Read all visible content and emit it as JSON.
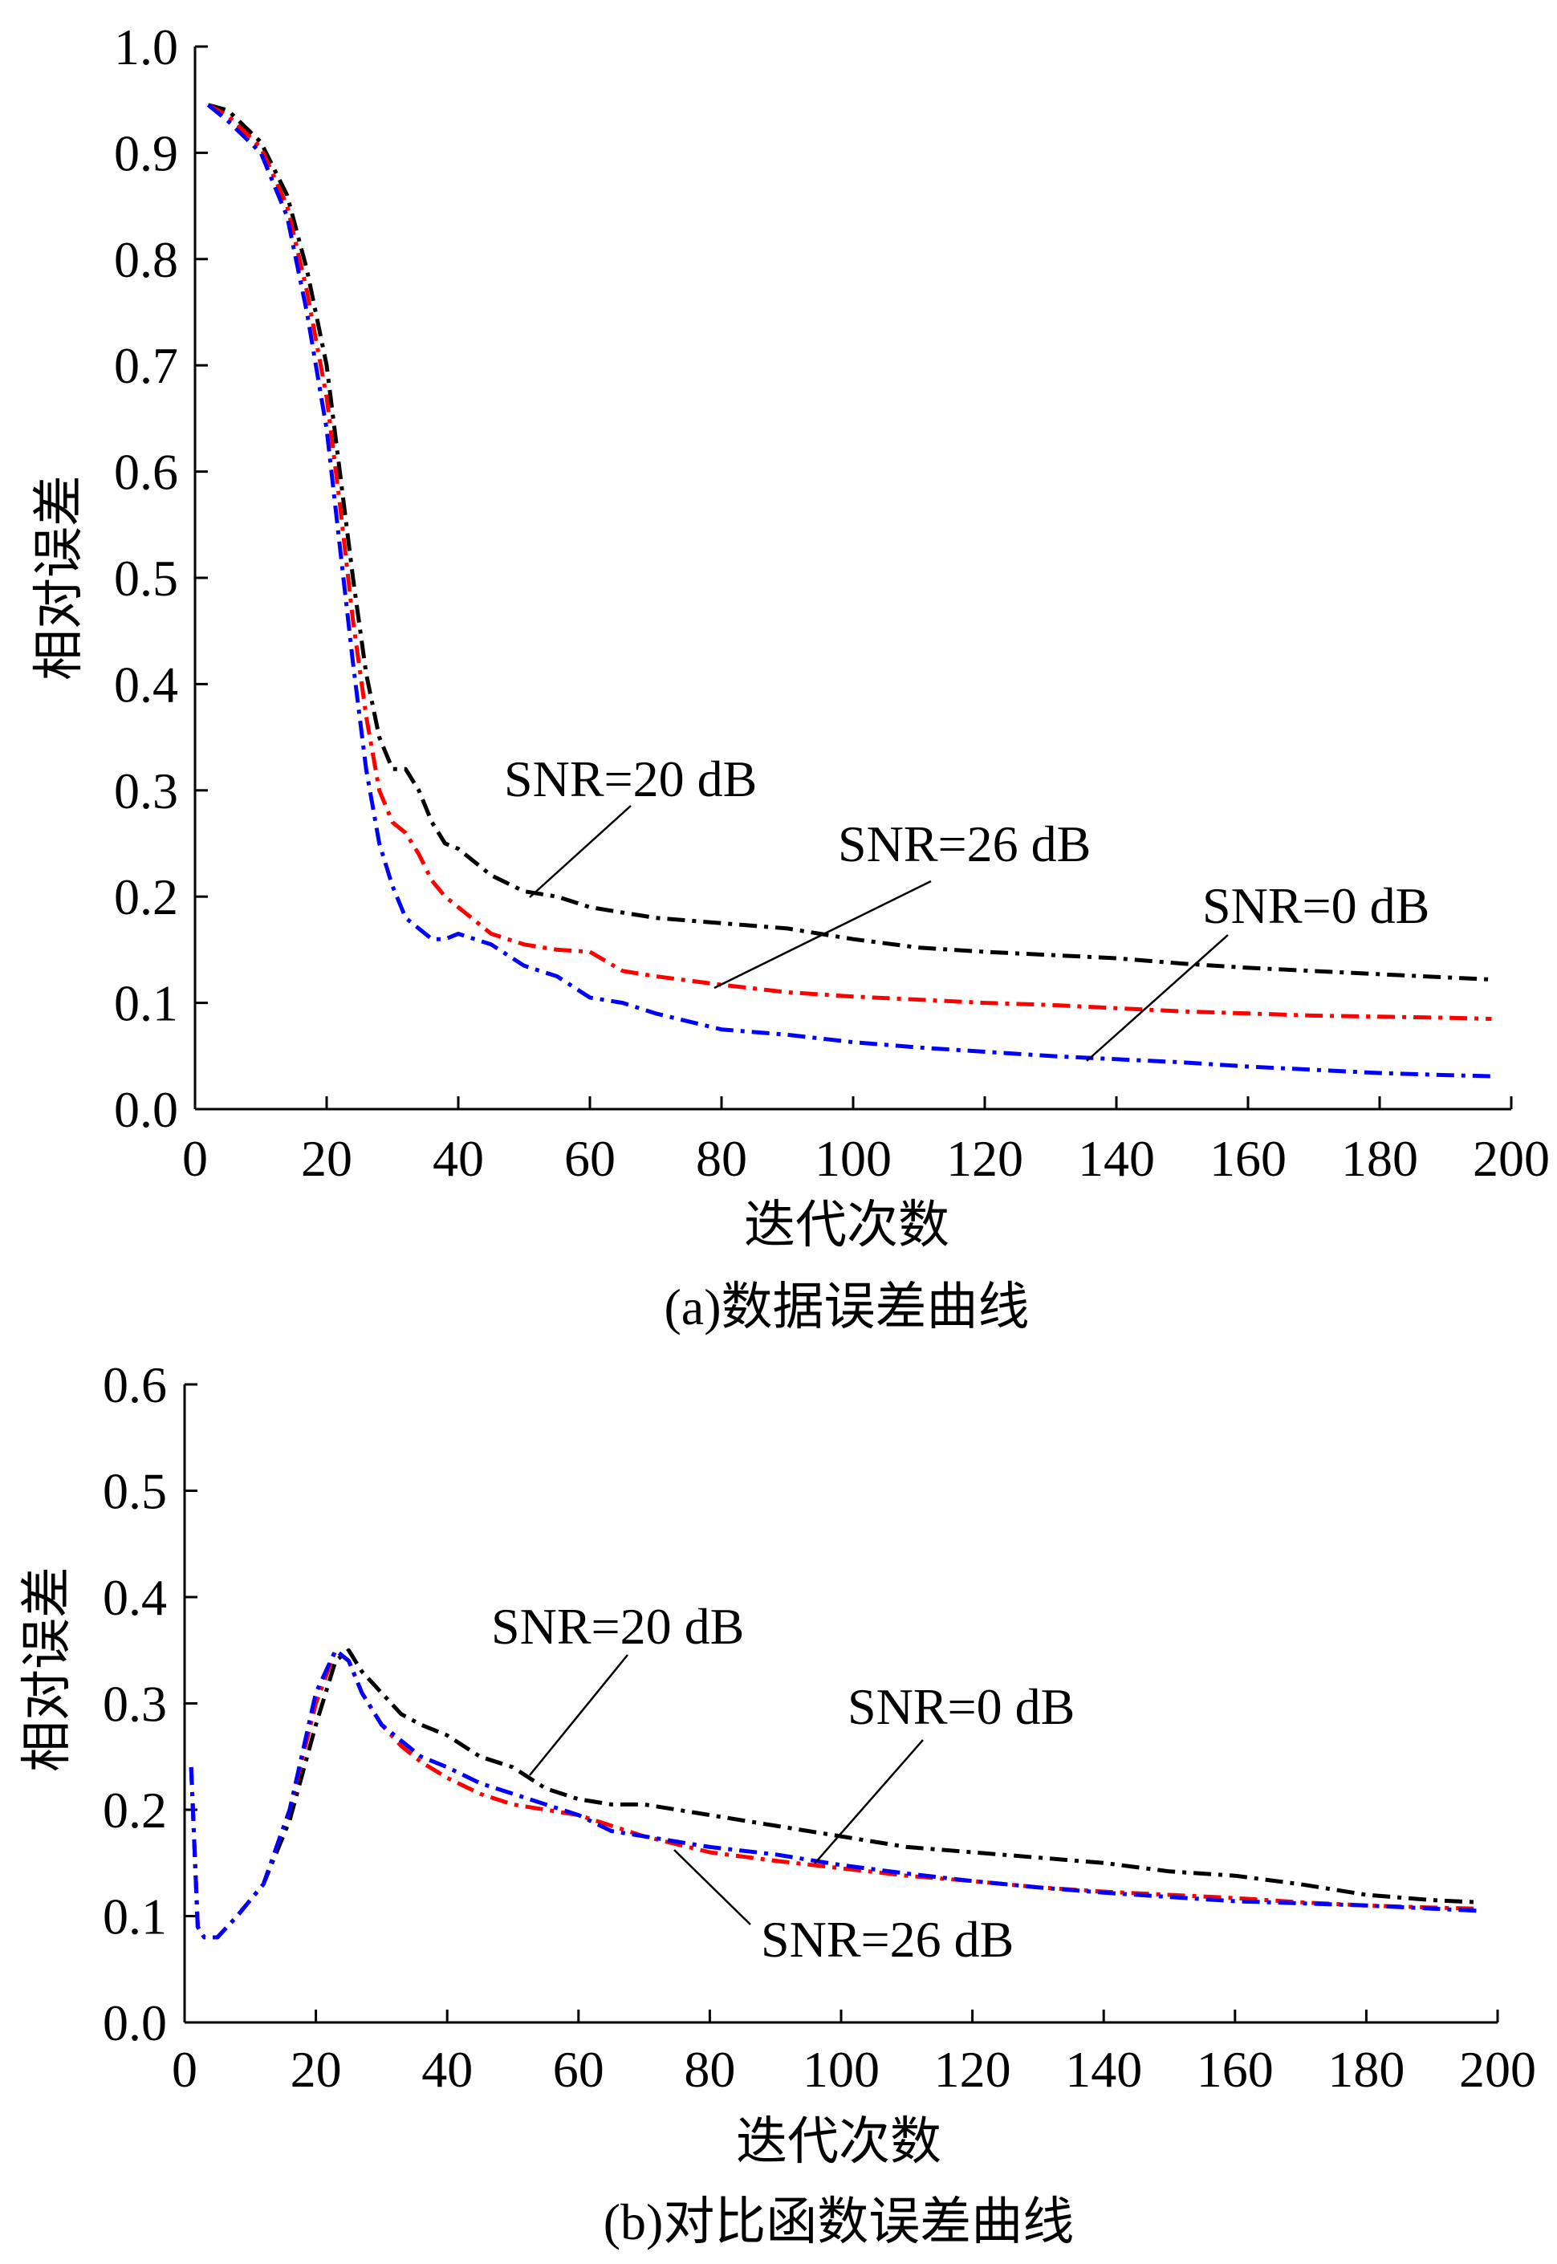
{
  "chart_data": [
    {
      "type": "line",
      "caption": "(a)数据误差曲线",
      "xlabel": "迭代次数",
      "ylabel": "相对误差",
      "xlim": [
        0,
        200
      ],
      "ylim": [
        0.0,
        1.0
      ],
      "xticks": [
        "0",
        "20",
        "40",
        "60",
        "80",
        "100",
        "120",
        "140",
        "160",
        "180",
        "200"
      ],
      "yticks": [
        "0.0",
        "0.1",
        "0.2",
        "0.3",
        "0.4",
        "0.5",
        "0.6",
        "0.7",
        "0.8",
        "0.9",
        "1.0"
      ],
      "series": [
        {
          "name": "SNR=20 dB",
          "color": "#000000",
          "x": [
            2,
            5,
            10,
            14,
            17,
            20,
            22,
            24,
            26,
            28,
            30,
            32,
            34,
            36,
            38,
            40,
            45,
            50,
            55,
            60,
            65,
            70,
            80,
            90,
            100,
            110,
            120,
            130,
            140,
            150,
            160,
            170,
            180,
            190,
            197
          ],
          "y": [
            0.945,
            0.94,
            0.91,
            0.86,
            0.79,
            0.7,
            0.6,
            0.5,
            0.41,
            0.35,
            0.32,
            0.32,
            0.3,
            0.27,
            0.25,
            0.245,
            0.22,
            0.205,
            0.2,
            0.19,
            0.185,
            0.18,
            0.175,
            0.17,
            0.16,
            0.152,
            0.148,
            0.145,
            0.142,
            0.137,
            0.133,
            0.13,
            0.127,
            0.124,
            0.122
          ]
        },
        {
          "name": "SNR=26 dB",
          "color": "#ff0000",
          "x": [
            2,
            5,
            10,
            14,
            17,
            20,
            22,
            24,
            26,
            28,
            30,
            32,
            34,
            36,
            38,
            40,
            45,
            50,
            55,
            60,
            65,
            70,
            80,
            90,
            100,
            110,
            120,
            130,
            140,
            150,
            160,
            170,
            180,
            190,
            197
          ],
          "y": [
            0.945,
            0.935,
            0.905,
            0.85,
            0.77,
            0.67,
            0.57,
            0.46,
            0.37,
            0.3,
            0.27,
            0.26,
            0.24,
            0.215,
            0.2,
            0.19,
            0.165,
            0.155,
            0.15,
            0.148,
            0.13,
            0.125,
            0.117,
            0.11,
            0.106,
            0.103,
            0.1,
            0.098,
            0.095,
            0.092,
            0.09,
            0.088,
            0.087,
            0.086,
            0.085
          ]
        },
        {
          "name": "SNR=0 dB",
          "color": "#0000ff",
          "x": [
            2,
            5,
            10,
            14,
            17,
            20,
            22,
            24,
            26,
            28,
            30,
            32,
            34,
            36,
            38,
            40,
            45,
            50,
            55,
            60,
            65,
            70,
            80,
            90,
            100,
            110,
            120,
            130,
            140,
            150,
            160,
            170,
            180,
            190,
            197
          ],
          "y": [
            0.945,
            0.93,
            0.9,
            0.84,
            0.75,
            0.64,
            0.53,
            0.42,
            0.32,
            0.25,
            0.21,
            0.18,
            0.17,
            0.16,
            0.16,
            0.165,
            0.155,
            0.135,
            0.125,
            0.105,
            0.1,
            0.09,
            0.075,
            0.07,
            0.063,
            0.058,
            0.054,
            0.05,
            0.047,
            0.044,
            0.04,
            0.037,
            0.034,
            0.032,
            0.031
          ]
        }
      ],
      "annotations": [
        "SNR=20 dB",
        "SNR=26 dB",
        "SNR=0 dB"
      ]
    },
    {
      "type": "line",
      "caption": "(b)对比函数误差曲线",
      "xlabel": "迭代次数",
      "ylabel": "相对误差",
      "xlim": [
        0,
        200
      ],
      "ylim": [
        0.0,
        0.6
      ],
      "xticks": [
        "0",
        "20",
        "40",
        "60",
        "80",
        "100",
        "120",
        "140",
        "160",
        "180",
        "200"
      ],
      "yticks": [
        "0.0",
        "0.1",
        "0.2",
        "0.3",
        "0.4",
        "0.5",
        "0.6"
      ],
      "series": [
        {
          "name": "SNR=20 dB",
          "color": "#000000",
          "x": [
            1,
            2,
            3,
            5,
            8,
            12,
            16,
            20,
            23,
            25,
            27,
            30,
            33,
            36,
            40,
            45,
            50,
            55,
            60,
            65,
            70,
            80,
            90,
            100,
            110,
            120,
            130,
            140,
            150,
            160,
            170,
            180,
            190,
            197
          ],
          "y": [
            0.24,
            0.09,
            0.08,
            0.08,
            0.1,
            0.13,
            0.19,
            0.28,
            0.34,
            0.35,
            0.33,
            0.31,
            0.29,
            0.28,
            0.27,
            0.25,
            0.24,
            0.22,
            0.21,
            0.205,
            0.205,
            0.195,
            0.185,
            0.175,
            0.165,
            0.16,
            0.155,
            0.15,
            0.142,
            0.138,
            0.13,
            0.12,
            0.115,
            0.113
          ]
        },
        {
          "name": "SNR=26 dB",
          "color": "#ff0000",
          "x": [
            1,
            2,
            3,
            5,
            8,
            12,
            16,
            20,
            23,
            25,
            27,
            30,
            33,
            36,
            40,
            45,
            50,
            55,
            60,
            65,
            70,
            80,
            90,
            100,
            110,
            120,
            130,
            140,
            150,
            160,
            170,
            180,
            190,
            197
          ],
          "y": [
            0.24,
            0.09,
            0.08,
            0.08,
            0.1,
            0.13,
            0.2,
            0.3,
            0.35,
            0.34,
            0.31,
            0.28,
            0.26,
            0.245,
            0.23,
            0.215,
            0.205,
            0.2,
            0.195,
            0.185,
            0.175,
            0.16,
            0.152,
            0.145,
            0.138,
            0.133,
            0.127,
            0.123,
            0.12,
            0.117,
            0.113,
            0.11,
            0.108,
            0.107
          ]
        },
        {
          "name": "SNR=0 dB",
          "color": "#0000ff",
          "x": [
            1,
            2,
            3,
            5,
            8,
            12,
            16,
            20,
            23,
            25,
            27,
            30,
            33,
            36,
            40,
            45,
            50,
            55,
            60,
            65,
            70,
            80,
            90,
            100,
            110,
            120,
            130,
            140,
            150,
            160,
            170,
            180,
            190,
            197
          ],
          "y": [
            0.24,
            0.09,
            0.08,
            0.08,
            0.1,
            0.13,
            0.2,
            0.31,
            0.35,
            0.34,
            0.31,
            0.28,
            0.265,
            0.25,
            0.24,
            0.225,
            0.215,
            0.205,
            0.195,
            0.18,
            0.175,
            0.165,
            0.158,
            0.148,
            0.14,
            0.133,
            0.127,
            0.122,
            0.118,
            0.114,
            0.112,
            0.11,
            0.107,
            0.105
          ]
        }
      ],
      "annotations": [
        "SNR=20 dB",
        "SNR=0 dB",
        "SNR=26 dB"
      ]
    }
  ]
}
